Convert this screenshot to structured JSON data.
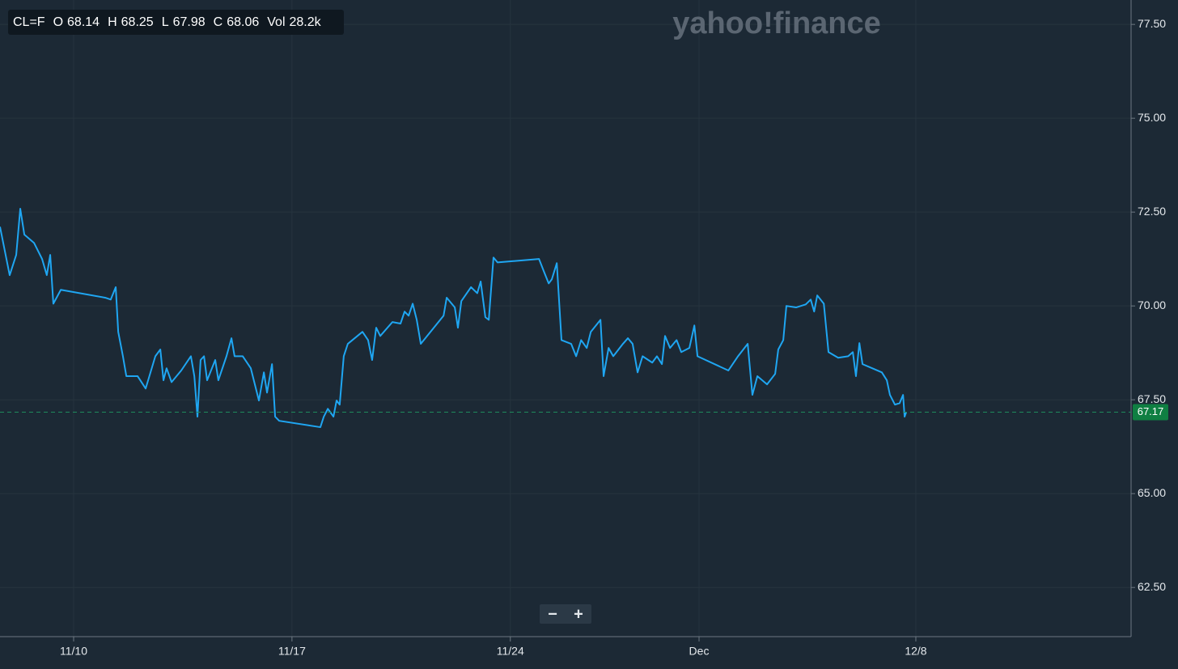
{
  "chart_data": {
    "type": "line",
    "symbol": "CL=F",
    "stats": [
      {
        "label": "O",
        "value": "68.14"
      },
      {
        "label": "H",
        "value": "68.25"
      },
      {
        "label": "L",
        "value": "67.98"
      },
      {
        "label": "C",
        "value": "68.06"
      },
      {
        "label": "Vol",
        "value": "28.2k"
      }
    ],
    "watermark": "yahoo!finance",
    "controls": [
      "−",
      "+"
    ],
    "color": "#1fa6f2",
    "grid": true,
    "last": {
      "value": 67.17,
      "label": "67.17"
    },
    "xlim": [
      7.64,
      43.9
    ],
    "ylim": [
      61.19,
      78.15
    ],
    "xticks": [
      {
        "value": 10,
        "label": "11/10"
      },
      {
        "value": 17,
        "label": "11/17"
      },
      {
        "value": 24,
        "label": "11/24"
      },
      {
        "value": 30.05,
        "label": "Dec"
      },
      {
        "value": 37,
        "label": "12/8"
      }
    ],
    "yticks": [
      {
        "value": 62.5,
        "label": "62.50"
      },
      {
        "value": 65,
        "label": "65.00"
      },
      {
        "value": 67.5,
        "label": "67.50"
      },
      {
        "value": 70,
        "label": "70.00"
      },
      {
        "value": 72.5,
        "label": "72.50"
      },
      {
        "value": 75,
        "label": "75.00"
      },
      {
        "value": 77.5,
        "label": "77.50"
      }
    ],
    "x": [
      7.64,
      7.95,
      8.16,
      8.29,
      8.42,
      8.73,
      8.99,
      9.14,
      9.25,
      9.35,
      9.59,
      11.01,
      11.19,
      11.35,
      11.43,
      11.58,
      11.69,
      12.05,
      12.31,
      12.62,
      12.78,
      12.88,
      12.98,
      13.14,
      13.45,
      13.76,
      13.87,
      13.97,
      14.07,
      14.18,
      14.28,
      14.54,
      14.64,
      14.9,
      15.06,
      15.16,
      15.42,
      15.68,
      15.94,
      16.1,
      16.2,
      16.36,
      16.46,
      16.59,
      17.91,
      18.02,
      18.15,
      18.33,
      18.43,
      18.53,
      18.66,
      18.79,
      19.26,
      19.44,
      19.57,
      19.7,
      19.83,
      20.22,
      20.48,
      20.61,
      20.74,
      20.87,
      21.0,
      21.13,
      21.86,
      21.96,
      22.22,
      22.32,
      22.43,
      22.74,
      22.94,
      23.05,
      23.2,
      23.31,
      23.46,
      23.59,
      24.92,
      25.07,
      25.23,
      25.33,
      25.49,
      25.64,
      25.95,
      26.11,
      26.27,
      26.45,
      26.58,
      26.89,
      26.99,
      27.15,
      27.3,
      27.61,
      27.77,
      27.92,
      28.08,
      28.24,
      28.55,
      28.7,
      28.86,
      28.96,
      29.12,
      29.33,
      29.48,
      29.74,
      29.9,
      30.0,
      30.99,
      31.3,
      31.61,
      31.76,
      31.92,
      32.23,
      32.49,
      32.59,
      32.75,
      32.85,
      33.16,
      33.47,
      33.63,
      33.74,
      33.84,
      34.05,
      34.2,
      34.51,
      34.83,
      34.98,
      35.08,
      35.19,
      35.29,
      35.6,
      35.91,
      36.07,
      36.17,
      36.33,
      36.48,
      36.59,
      36.64,
      36.69
    ],
    "values": [
      72.11,
      70.82,
      71.36,
      72.59,
      71.9,
      71.68,
      71.25,
      70.82,
      71.36,
      70.06,
      70.43,
      70.22,
      70.17,
      70.5,
      69.31,
      68.66,
      68.13,
      68.13,
      67.8,
      68.66,
      68.84,
      68.02,
      68.34,
      67.97,
      68.28,
      68.66,
      68.13,
      67.05,
      68.56,
      68.66,
      68.02,
      68.56,
      68.02,
      68.66,
      69.14,
      68.66,
      68.66,
      68.34,
      67.48,
      68.23,
      67.69,
      68.45,
      67.05,
      66.94,
      66.77,
      67.05,
      67.26,
      67.05,
      67.48,
      67.37,
      68.66,
      68.99,
      69.31,
      69.09,
      68.56,
      69.42,
      69.2,
      69.57,
      69.53,
      69.85,
      69.74,
      70.06,
      69.63,
      68.99,
      69.74,
      70.22,
      69.96,
      69.42,
      70.13,
      70.5,
      70.34,
      70.65,
      69.7,
      69.63,
      71.29,
      71.16,
      71.25,
      70.93,
      70.6,
      70.71,
      71.14,
      69.09,
      68.99,
      68.66,
      69.09,
      68.88,
      69.31,
      69.63,
      68.13,
      68.88,
      68.66,
      68.99,
      69.14,
      68.99,
      68.23,
      68.66,
      68.49,
      68.66,
      68.45,
      69.2,
      68.88,
      69.09,
      68.77,
      68.88,
      69.48,
      68.66,
      68.28,
      68.66,
      68.99,
      67.63,
      68.13,
      67.91,
      68.19,
      68.84,
      69.09,
      70.0,
      69.96,
      70.04,
      70.17,
      69.85,
      70.28,
      70.06,
      68.77,
      68.62,
      68.66,
      68.77,
      68.13,
      69.01,
      68.45,
      68.34,
      68.23,
      68.02,
      67.63,
      67.37,
      67.41,
      67.63,
      67.05,
      67.17
    ]
  }
}
